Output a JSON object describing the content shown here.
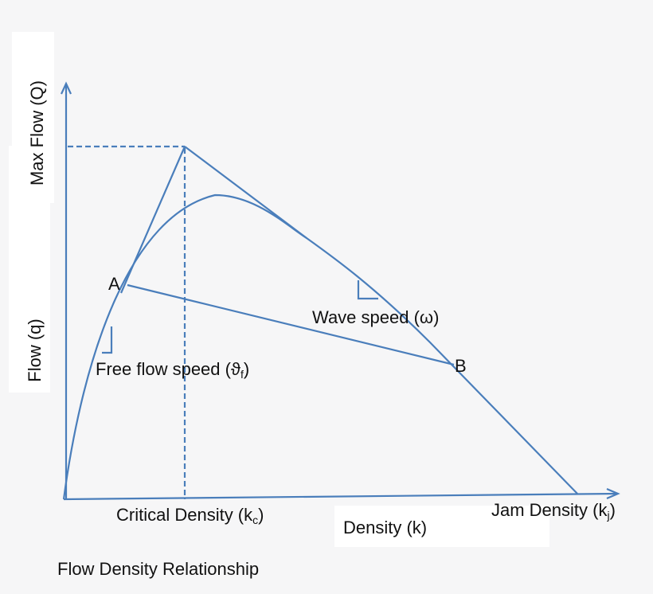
{
  "colors": {
    "line": "#4a7ebb",
    "background": "#f6f6f7",
    "text": "#111111"
  },
  "axes": {
    "y_top_label": "Max Flow (Q)",
    "y_label": "Flow (q)",
    "x_label": "Density (k)"
  },
  "labels": {
    "point_a": "A",
    "point_b": "B",
    "free_flow": "Free flow speed (ϑ",
    "free_flow_sub": "f",
    "free_flow_close": ")",
    "wave_speed": "Wave speed (ω)",
    "critical_density": "Critical Density (k",
    "critical_density_sub": "c",
    "critical_density_close": ")",
    "jam_density": "Jam Density (k",
    "jam_density_sub": "j",
    "jam_density_close": ")"
  },
  "caption": "Flow Density Relationship"
}
